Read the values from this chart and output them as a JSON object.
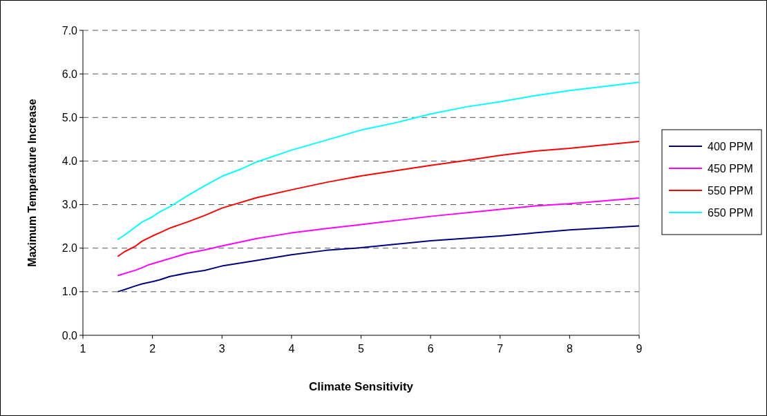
{
  "chart_data": {
    "type": "line",
    "xlabel": "Climate Sensitivity",
    "ylabel": "Maximum Temperature Increase",
    "xlim": [
      1,
      9
    ],
    "xticks": [
      1,
      2,
      3,
      4,
      5,
      6,
      7,
      8,
      9
    ],
    "ylim": [
      0,
      7
    ],
    "yticks": [
      {
        "value": 0,
        "label": "0.0"
      },
      {
        "value": 1,
        "label": "1.0"
      },
      {
        "value": 2,
        "label": "2.0"
      },
      {
        "value": 3,
        "label": "3.0"
      },
      {
        "value": 4,
        "label": "4.0"
      },
      {
        "value": 5,
        "label": "5.0"
      },
      {
        "value": 6,
        "label": "6.0"
      },
      {
        "value": 7,
        "label": "7.0"
      }
    ],
    "grid": "y",
    "legend": "right",
    "marker": "none",
    "line_style": "solid",
    "series": [
      {
        "name": "400 PPM",
        "color": "#000080",
        "x": [
          1.5,
          1.6,
          1.75,
          1.85,
          2,
          2.1,
          2.25,
          2.5,
          2.75,
          3,
          3.5,
          4,
          4.5,
          5,
          5.5,
          6,
          7,
          7.5,
          8,
          9
        ],
        "values": [
          1.0,
          1.05,
          1.13,
          1.18,
          1.23,
          1.27,
          1.35,
          1.43,
          1.49,
          1.59,
          1.72,
          1.85,
          1.95,
          2.01,
          2.09,
          2.17,
          2.28,
          2.35,
          2.42,
          2.51
        ]
      },
      {
        "name": "450 PPM",
        "color": "#ff00ff",
        "x": [
          1.5,
          1.75,
          1.85,
          1.95,
          2.1,
          2.5,
          2.75,
          3,
          3.5,
          4,
          4.5,
          5,
          6,
          7,
          7.5,
          8,
          9
        ],
        "values": [
          1.37,
          1.49,
          1.55,
          1.62,
          1.69,
          1.88,
          1.96,
          2.05,
          2.22,
          2.35,
          2.45,
          2.54,
          2.73,
          2.89,
          2.97,
          3.02,
          3.15
        ]
      },
      {
        "name": "550 PPM",
        "color": "#ff0000",
        "x": [
          1.5,
          1.6,
          1.75,
          1.85,
          2,
          2.1,
          2.25,
          2.5,
          2.75,
          3,
          3.5,
          4,
          4.5,
          5,
          6,
          6.5,
          7,
          7.5,
          8,
          9
        ],
        "values": [
          1.81,
          1.92,
          2.04,
          2.16,
          2.28,
          2.35,
          2.46,
          2.6,
          2.75,
          2.92,
          3.16,
          3.34,
          3.51,
          3.66,
          3.9,
          4.01,
          4.13,
          4.23,
          4.29,
          4.45
        ]
      },
      {
        "name": "650 PPM",
        "color": "#00ffff",
        "x": [
          1.5,
          1.6,
          1.85,
          2,
          2.1,
          2.25,
          2.5,
          2.75,
          3,
          3.25,
          3.5,
          4,
          4.5,
          5,
          5.5,
          6,
          6.5,
          7,
          7.5,
          8,
          9
        ],
        "values": [
          2.2,
          2.3,
          2.6,
          2.72,
          2.83,
          2.95,
          3.2,
          3.43,
          3.65,
          3.8,
          3.98,
          4.25,
          4.48,
          4.71,
          4.88,
          5.08,
          5.24,
          5.36,
          5.5,
          5.62,
          5.81
        ]
      }
    ]
  }
}
